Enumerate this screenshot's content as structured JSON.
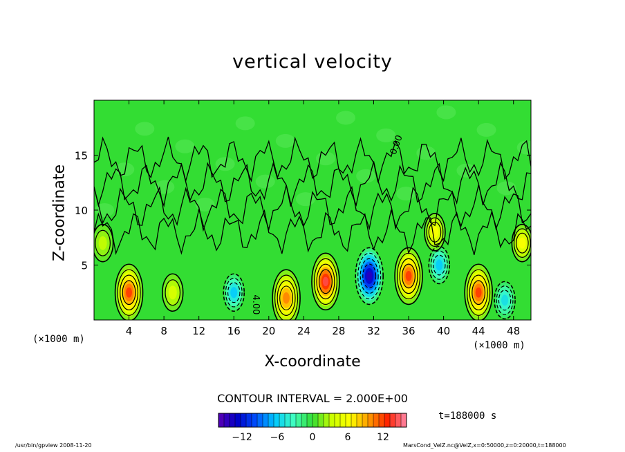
{
  "chart_data": {
    "type": "heatmap",
    "title": "vertical velocity",
    "xlabel": "X-coordinate",
    "ylabel": "Z-coordinate",
    "x_unit": "(×1000 m)",
    "xlim": [
      0,
      50
    ],
    "ylim": [
      0,
      20
    ],
    "x_ticks": [
      4,
      8,
      12,
      16,
      20,
      24,
      28,
      32,
      36,
      40,
      44,
      48
    ],
    "y_ticks": [
      5,
      10,
      15
    ],
    "contour_interval_text": "CONTOUR INTERVAL = 2.000E+00",
    "contour_labels": [
      "0.00",
      "4.00"
    ],
    "colorbar": {
      "range": [
        -16,
        16
      ],
      "ticks": [
        -12,
        -6,
        0,
        6,
        12
      ],
      "tick_labels": [
        "−12",
        "−6",
        "0",
        "6",
        "12"
      ]
    },
    "time_label": "t=188000 s",
    "cells": [
      {
        "x": 4,
        "z": 2.5,
        "value": 12
      },
      {
        "x": 9,
        "z": 2.5,
        "value": 4
      },
      {
        "x": 16,
        "z": 2.5,
        "value": -6
      },
      {
        "x": 22,
        "z": 2,
        "value": 10
      },
      {
        "x": 26.5,
        "z": 3.5,
        "value": 14
      },
      {
        "x": 31.5,
        "z": 4,
        "value": -14
      },
      {
        "x": 36,
        "z": 4,
        "value": 12
      },
      {
        "x": 39.5,
        "z": 5,
        "value": -6
      },
      {
        "x": 44,
        "z": 2.5,
        "value": 12
      },
      {
        "x": 47,
        "z": 1.8,
        "value": -5
      },
      {
        "x": 49,
        "z": 7,
        "value": 6
      },
      {
        "x": 39,
        "z": 8,
        "value": 6
      },
      {
        "x": 1,
        "z": 7,
        "value": 3
      }
    ],
    "colors": {
      "background": "#33dd33",
      "scale": [
        "#5a00b4",
        "#0000c8",
        "#0050ff",
        "#00c8ff",
        "#40ffc0",
        "#33dd33",
        "#c8ff00",
        "#ffff00",
        "#ff9900",
        "#ff2200",
        "#ff88aa"
      ]
    }
  },
  "footer": {
    "left": "/usr/bin/gpview   2008-11-20",
    "right": "MarsCond_VelZ.nc@VelZ,x=0:50000,z=0:20000,t=188000"
  }
}
